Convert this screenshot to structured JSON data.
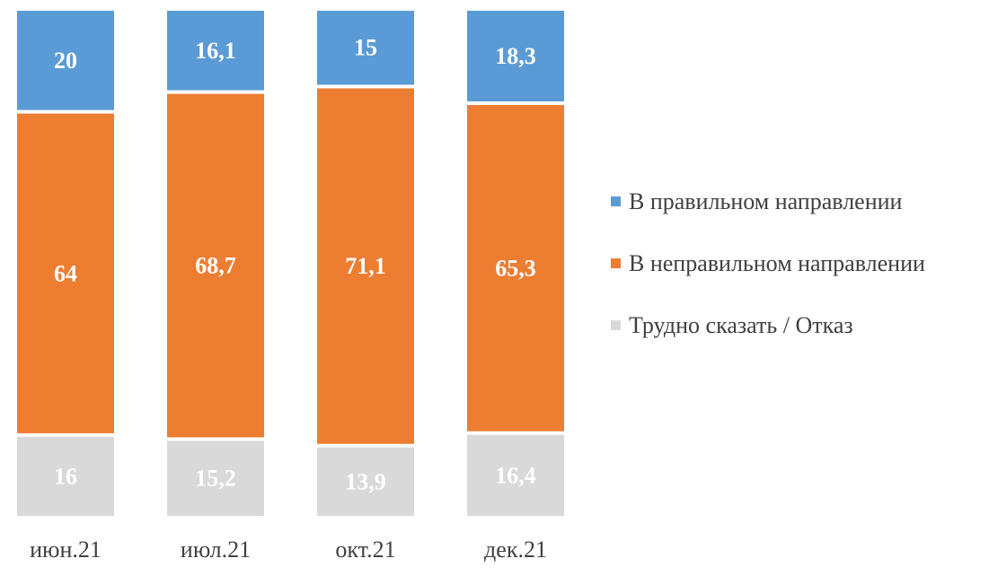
{
  "chart_data": {
    "type": "bar",
    "stacked": true,
    "percent_stacked": true,
    "categories": [
      "июн.21",
      "июл.21",
      "окт.21",
      "дек.21"
    ],
    "series": [
      {
        "name": "В правильном направлении",
        "color": "#5B9BD5",
        "values": [
          20,
          16.1,
          15,
          18.3
        ],
        "labels": [
          "20",
          "16,1",
          "15",
          "18,3"
        ]
      },
      {
        "name": "В неправильном направлении",
        "color": "#ED7D31",
        "values": [
          64,
          68.7,
          71.1,
          65.3
        ],
        "labels": [
          "64",
          "68,7",
          "71,1",
          "65,3"
        ]
      },
      {
        "name": "Трудно сказать / Отказ",
        "color": "#D9D9D9",
        "values": [
          16,
          15.2,
          13.9,
          16.4
        ],
        "labels": [
          "16",
          "15,2",
          "13,9",
          "16,4"
        ]
      }
    ],
    "legend_position": "right",
    "grid": false,
    "data_labels": true
  }
}
